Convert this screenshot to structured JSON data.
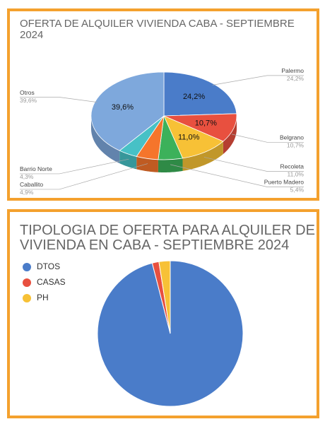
{
  "chart_data": [
    {
      "type": "pie3d",
      "title": "OFERTA DE ALQUILER VIVIENDA CABA - SEPTIEMBRE 2024",
      "categories": [
        "Palermo",
        "Belgrano",
        "Recoleta",
        "Puerto Madero",
        "Caballito",
        "Barrio Norte",
        "Otros"
      ],
      "values": [
        24.2,
        10.7,
        11.0,
        5.4,
        4.9,
        4.3,
        39.6
      ],
      "value_labels": [
        "24,2%",
        "10,7%",
        "11,0%",
        "5,4%",
        "4,9%",
        "4,3%",
        "39,6%"
      ],
      "colors": [
        "#4a7cc9",
        "#e8503f",
        "#f7c136",
        "#3cb15a",
        "#f5752b",
        "#47c1c6",
        "#7ea8dc"
      ]
    },
    {
      "type": "pie",
      "title": "TIPOLOGIA DE OFERTA PARA ALQUILER DE VIVIENDA EN CABA - SEPTIEMBRE 2024",
      "categories": [
        "DTOS",
        "CASAS",
        "PH"
      ],
      "values": [
        96,
        1.5,
        2.5
      ],
      "colors": [
        "#4a7cc9",
        "#e8503f",
        "#f7c136"
      ],
      "legend": "top-left"
    }
  ]
}
